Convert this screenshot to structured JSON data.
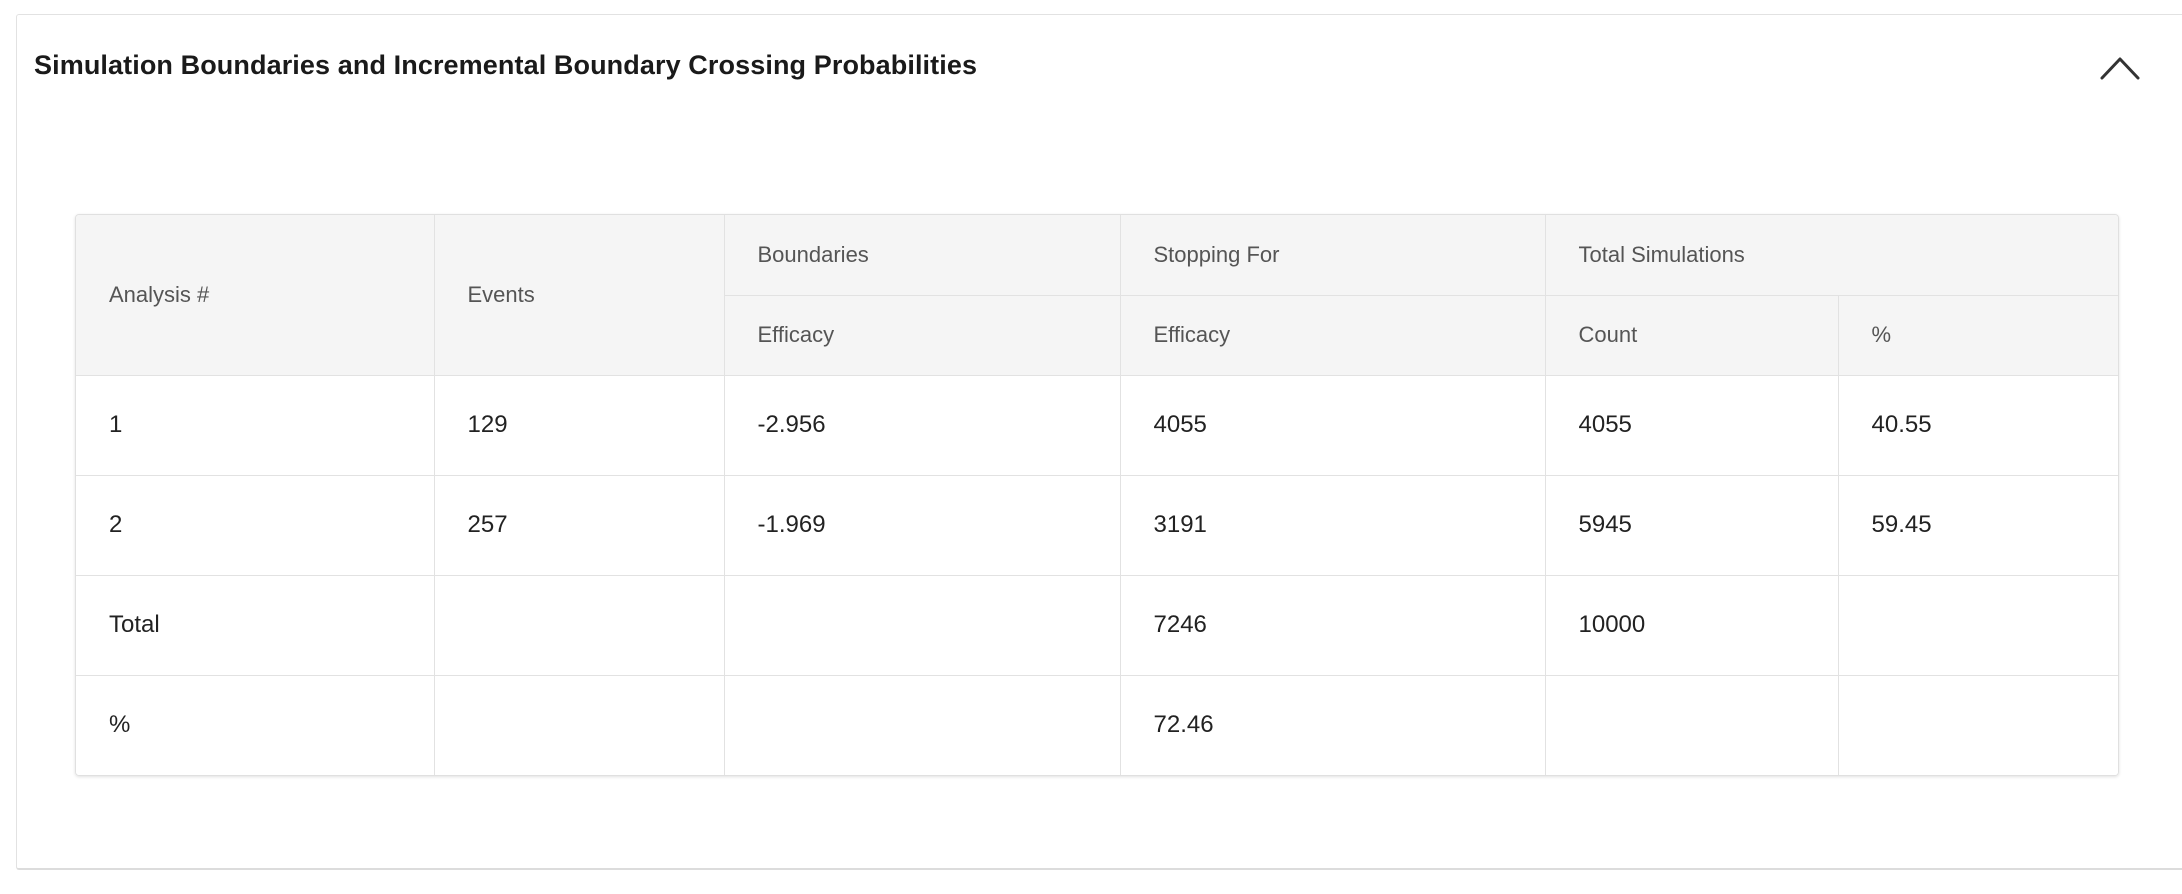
{
  "panel": {
    "title": "Simulation Boundaries and Incremental Boundary Crossing Probabilities",
    "collapse_icon": "chevron-up-icon"
  },
  "table": {
    "headers": {
      "analysis": "Analysis #",
      "events": "Events",
      "boundaries": "Boundaries",
      "stopping_for": "Stopping For",
      "total_simulations": "Total Simulations",
      "boundaries_efficacy": "Efficacy",
      "stopping_efficacy": "Efficacy",
      "count": "Count",
      "percent": "%"
    },
    "rows": [
      [
        "1",
        "129",
        "-2.956",
        "4055",
        "4055",
        "40.55"
      ],
      [
        "2",
        "257",
        "-1.969",
        "3191",
        "5945",
        "59.45"
      ],
      [
        "Total",
        "",
        "",
        "7246",
        "10000",
        ""
      ],
      [
        "%",
        "",
        "",
        "72.46",
        "",
        ""
      ]
    ]
  }
}
